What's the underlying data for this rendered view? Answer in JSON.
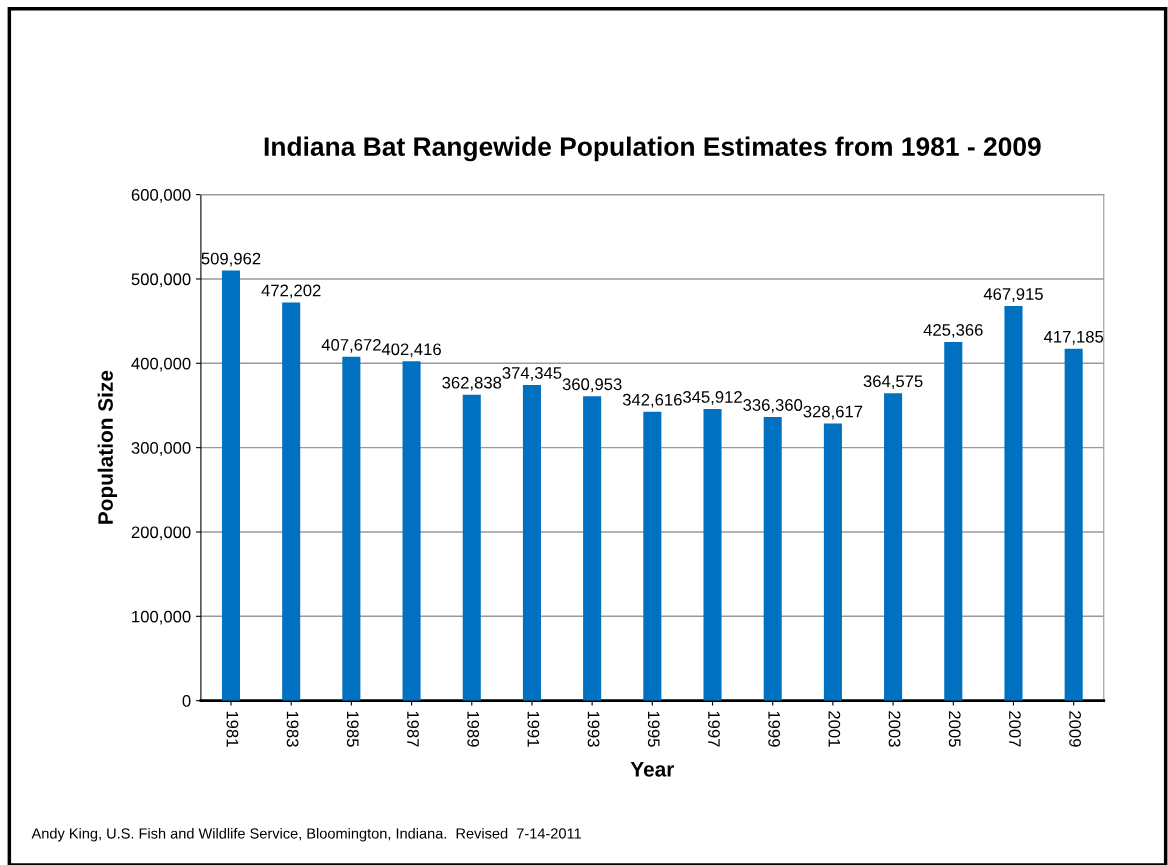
{
  "chart_data": {
    "type": "bar",
    "title": "Indiana Bat Rangewide Population Estimates from 1981 - 2009",
    "xlabel": "Year",
    "ylabel": "Population Size",
    "categories": [
      "1981",
      "1983",
      "1985",
      "1987",
      "1989",
      "1991",
      "1993",
      "1995",
      "1997",
      "1999",
      "2001",
      "2003",
      "2005",
      "2007",
      "2009"
    ],
    "values": [
      509962,
      472202,
      407672,
      402416,
      362838,
      374345,
      360953,
      342616,
      345912,
      336360,
      328617,
      364575,
      425366,
      467915,
      417185
    ],
    "color": "#0070c0",
    "data_labels": true,
    "value_labels": [
      "509,962",
      "472,202",
      "407,672",
      "402,416",
      "362,838",
      "374,345",
      "360,953",
      "342,616",
      "345,912",
      "336,360",
      "328,617",
      "364,575",
      "425,366",
      "467,915",
      "417,185"
    ],
    "ylim": [
      0,
      600000
    ],
    "yticks": [
      {
        "value": 0,
        "label": "0"
      },
      {
        "value": 100000,
        "label": "100,000"
      },
      {
        "value": 200000,
        "label": "200,000"
      },
      {
        "value": 300000,
        "label": "300,000"
      },
      {
        "value": 400000,
        "label": "400,000"
      },
      {
        "value": 500000,
        "label": "500,000"
      },
      {
        "value": 600000,
        "label": "600,000"
      }
    ],
    "grid": "y",
    "legend": false,
    "annotations": [
      "Andy King, U.S. Fish and Wildlife Service, Bloomington, Indiana.  Revised  7-14-2011"
    ]
  }
}
